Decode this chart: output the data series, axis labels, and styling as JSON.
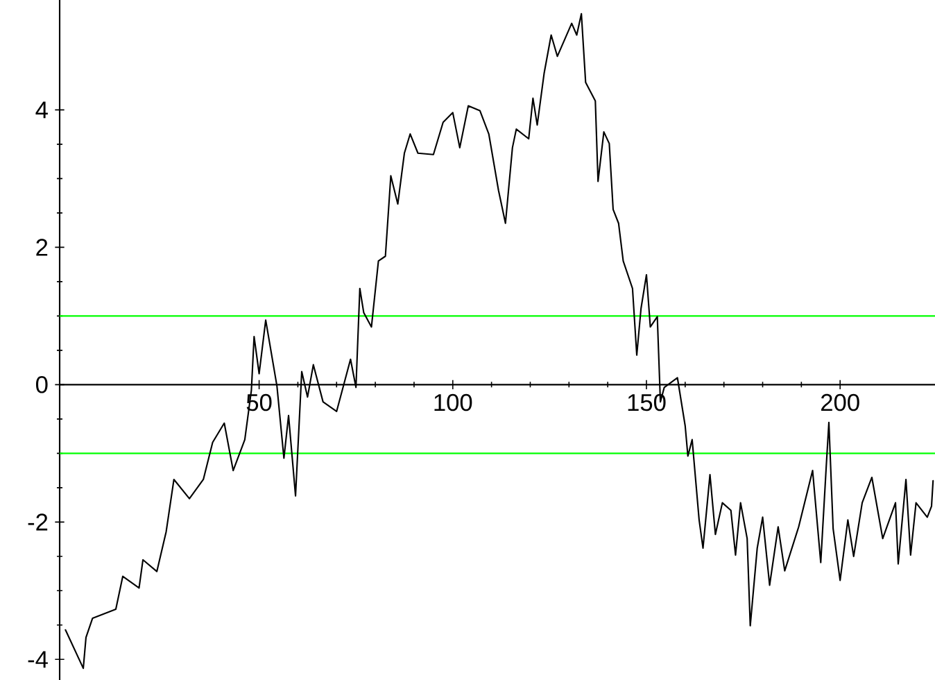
{
  "chart_data": {
    "type": "line",
    "x": [
      0,
      4.6,
      5.3,
      7,
      13,
      14.8,
      19,
      20,
      23.6,
      26,
      28,
      32,
      35.6,
      38,
      41,
      43.3,
      46.3,
      48,
      48.7,
      50,
      51.7,
      54.6,
      56.4,
      57.6,
      59.4,
      61,
      62.5,
      64,
      66.5,
      70,
      73.6,
      75,
      76,
      77,
      79,
      80.8,
      82.6,
      84,
      85.8,
      87.5,
      89,
      91,
      95,
      97.5,
      100,
      101.8,
      104,
      107,
      109.3,
      111.8,
      113.6,
      115.4,
      116.4,
      119.6,
      120.7,
      121.8,
      123.6,
      125.4,
      127,
      130.7,
      132,
      133.2,
      134.3,
      136.8,
      137.5,
      139,
      140.4,
      141.4,
      142.8,
      144,
      146.4,
      147.5,
      148.6,
      150,
      151,
      152.8,
      153.6,
      154.6,
      158,
      160,
      160.7,
      161.8,
      163.6,
      164.6,
      166.4,
      167.8,
      169.6,
      171.8,
      173,
      174.3,
      176,
      176.8,
      178.6,
      180,
      181.8,
      184,
      185.7,
      189.3,
      192.9,
      195,
      196.4,
      197.1,
      198.2,
      200,
      202,
      203.5,
      205.7,
      208.2,
      211,
      214.3,
      215,
      217,
      218.2,
      219.6,
      222.5,
      223.6,
      224
    ],
    "series": [
      {
        "color": "#000000",
        "values": [
          -3.57,
          -4.13,
          -3.68,
          -3.4,
          -3.27,
          -2.79,
          -2.96,
          -2.55,
          -2.72,
          -2.14,
          -1.38,
          -1.66,
          -1.38,
          -0.84,
          -0.56,
          -1.25,
          -0.8,
          -0.08,
          0.7,
          0.16,
          0.94,
          -0.02,
          -1.07,
          -0.45,
          -1.62,
          0.19,
          -0.18,
          0.29,
          -0.25,
          -0.39,
          0.37,
          -0.04,
          1.4,
          1.05,
          0.84,
          1.8,
          1.87,
          3.04,
          2.63,
          3.37,
          3.65,
          3.37,
          3.35,
          3.82,
          3.96,
          3.45,
          4.06,
          3.99,
          3.65,
          2.83,
          2.35,
          3.45,
          3.72,
          3.58,
          4.17,
          3.78,
          4.54,
          5.09,
          4.78,
          5.26,
          5.09,
          5.4,
          4.4,
          4.13,
          2.96,
          3.68,
          3.51,
          2.55,
          2.35,
          1.8,
          1.4,
          0.43,
          1.11,
          1.6,
          0.84,
          0.99,
          -0.25,
          -0.04,
          0.1,
          -0.6,
          -1.04,
          -0.8,
          -1.97,
          -2.38,
          -1.31,
          -2.18,
          -1.72,
          -1.83,
          -2.48,
          -1.72,
          -2.24,
          -3.51,
          -2.38,
          -1.93,
          -2.92,
          -2.07,
          -2.71,
          -2.07,
          -1.25,
          -2.59,
          -1.21,
          -0.55,
          -2.1,
          -2.85,
          -1.97,
          -2.5,
          -1.72,
          -1.35,
          -2.24,
          -1.72,
          -2.61,
          -1.38,
          -2.48,
          -1.72,
          -1.93,
          -1.77,
          -1.4
        ]
      }
    ],
    "xlim": [
      -1.5,
      224.5
    ],
    "ylim": [
      -4.3,
      5.6
    ],
    "xticks": [
      50,
      100,
      150,
      200
    ],
    "yticks": [
      -4,
      -2,
      0,
      2,
      4
    ],
    "ref_lines": [
      {
        "axis": "y",
        "value": 1,
        "color": "#00ff00"
      },
      {
        "axis": "y",
        "value": -1,
        "color": "#00ff00"
      }
    ],
    "grid": false,
    "marker": "none",
    "line_style": "solid"
  }
}
